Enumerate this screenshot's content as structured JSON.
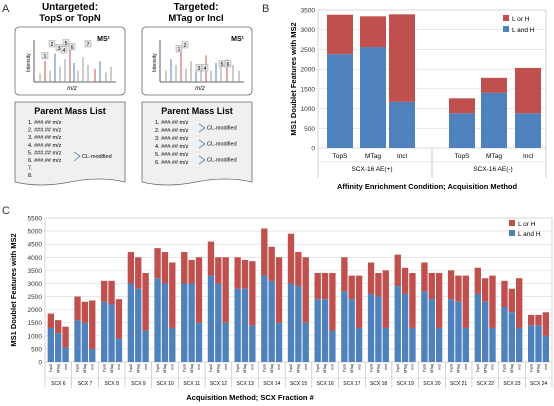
{
  "panel_labels": {
    "a": "A",
    "b": "B",
    "c": "C"
  },
  "schematic": {
    "untargeted": {
      "title_line1": "Untargeted:",
      "title_line2": "TopS or TopN",
      "ms_label": "MS¹",
      "y_label": "Intensity",
      "x_label": "m/z",
      "peak_numbers": [
        "1",
        "2",
        "3",
        "4",
        "5",
        "6",
        "7"
      ],
      "list_title": "Parent Mass List",
      "list_items": [
        "1. ###.## m/z",
        "2. ###.## m/z",
        "3. ###.## m/z",
        "4. ###.## m/z",
        "5. ###.## m/z",
        "6. ###.## m/z",
        "7.",
        "8."
      ],
      "annotation": "CL-modified"
    },
    "targeted": {
      "title_line1": "Targeted:",
      "title_line2": "MTag or Incl",
      "ms_label": "MS¹",
      "y_label": "Intensity",
      "x_label": "m/z",
      "peak_numbers": [
        "1",
        "2",
        "3",
        "4",
        "5",
        "6"
      ],
      "list_title": "Parent Mass List",
      "list_items": [
        "1. ###.## m/z",
        "2. ###.## m/z",
        "3. ###.## m/z",
        "4. ###.## m/z",
        "5. ###.## m/z",
        "6. ###.## m/z"
      ],
      "annotations": [
        "CL-modified",
        "CL-modified",
        "CL-modified"
      ]
    }
  },
  "colors": {
    "l_or_h": "#c0504d",
    "l_and_h": "#4f81bd"
  },
  "chart_data": [
    {
      "type": "bar",
      "stacked": true,
      "ylabel": "MS1 Doublet Features with MS2",
      "xlabel": "Affinity Enrichment Condition; Acquisition Method",
      "ylim": [
        0,
        3500
      ],
      "yticks": [
        "0",
        "500",
        "1000",
        "1500",
        "2000",
        "2500",
        "3000",
        "3500"
      ],
      "categories": [
        "TopS",
        "MTag",
        "Incl",
        "TopS",
        "MTag",
        "Incl"
      ],
      "groups": [
        "SCX-16 AE(+)",
        "SCX-16 AE(-)"
      ],
      "legend": [
        "L or  H",
        "L and H"
      ],
      "legend_position": "top-right",
      "grid": true,
      "series": [
        {
          "name": "L and H",
          "values": [
            2380,
            2560,
            1170,
            880,
            1400,
            880
          ]
        },
        {
          "name": "L or  H",
          "values": [
            1000,
            780,
            2220,
            380,
            380,
            1150
          ]
        }
      ]
    },
    {
      "type": "bar",
      "stacked": true,
      "ylabel": "MS1 Doublet Features with MS2",
      "xlabel": "Acquisition Method; SCX Fraction #",
      "ylim": [
        0,
        5500
      ],
      "yticks": [
        "0",
        "500",
        "1000",
        "1500",
        "2000",
        "2500",
        "3000",
        "3500",
        "4000",
        "4500",
        "5000",
        "5500"
      ],
      "methods": [
        "TopS",
        "MTag",
        "Incl"
      ],
      "fractions": [
        "SCX 6",
        "SCX 7",
        "SCX 8",
        "SCX 9",
        "SCX 10",
        "SCX 11",
        "SCX 12",
        "SCX 13",
        "SCX 14",
        "SCX 15",
        "SCX 16",
        "SCX 17",
        "SCX 18",
        "SCX 19",
        "SCX 20",
        "SCX 21",
        "SCX 22",
        "SCX 23",
        "SCX 24"
      ],
      "legend": [
        "L or  H",
        "L and H"
      ],
      "legend_position": "top-right",
      "grid": true,
      "series": [
        {
          "name": "L and H",
          "values": [
            1300,
            1100,
            550,
            1600,
            1500,
            500,
            2300,
            2200,
            900,
            3000,
            2800,
            1200,
            3200,
            3000,
            1300,
            3000,
            3000,
            1500,
            3300,
            3000,
            1500,
            2800,
            2800,
            1400,
            3300,
            3100,
            1500,
            3000,
            2900,
            1500,
            2400,
            2400,
            1200,
            2700,
            2400,
            1300,
            2600,
            2500,
            1300,
            2900,
            2600,
            1300,
            2700,
            2400,
            1300,
            2400,
            2300,
            1300,
            2600,
            2300,
            1300,
            2100,
            1900,
            1300,
            1400,
            1400,
            1000
          ]
        },
        {
          "name": "L or  H",
          "values": [
            550,
            500,
            800,
            900,
            800,
            1850,
            800,
            900,
            1500,
            1200,
            1200,
            2200,
            1150,
            1200,
            2500,
            1200,
            900,
            2500,
            1300,
            1000,
            2500,
            1200,
            1100,
            2450,
            1800,
            1300,
            2500,
            1900,
            1300,
            2500,
            1000,
            1000,
            2200,
            1300,
            900,
            2000,
            1200,
            900,
            2200,
            1200,
            1000,
            2100,
            1100,
            1000,
            2100,
            1100,
            1000,
            2000,
            1000,
            900,
            2000,
            1000,
            900,
            1900,
            400,
            400,
            900
          ]
        }
      ]
    }
  ]
}
